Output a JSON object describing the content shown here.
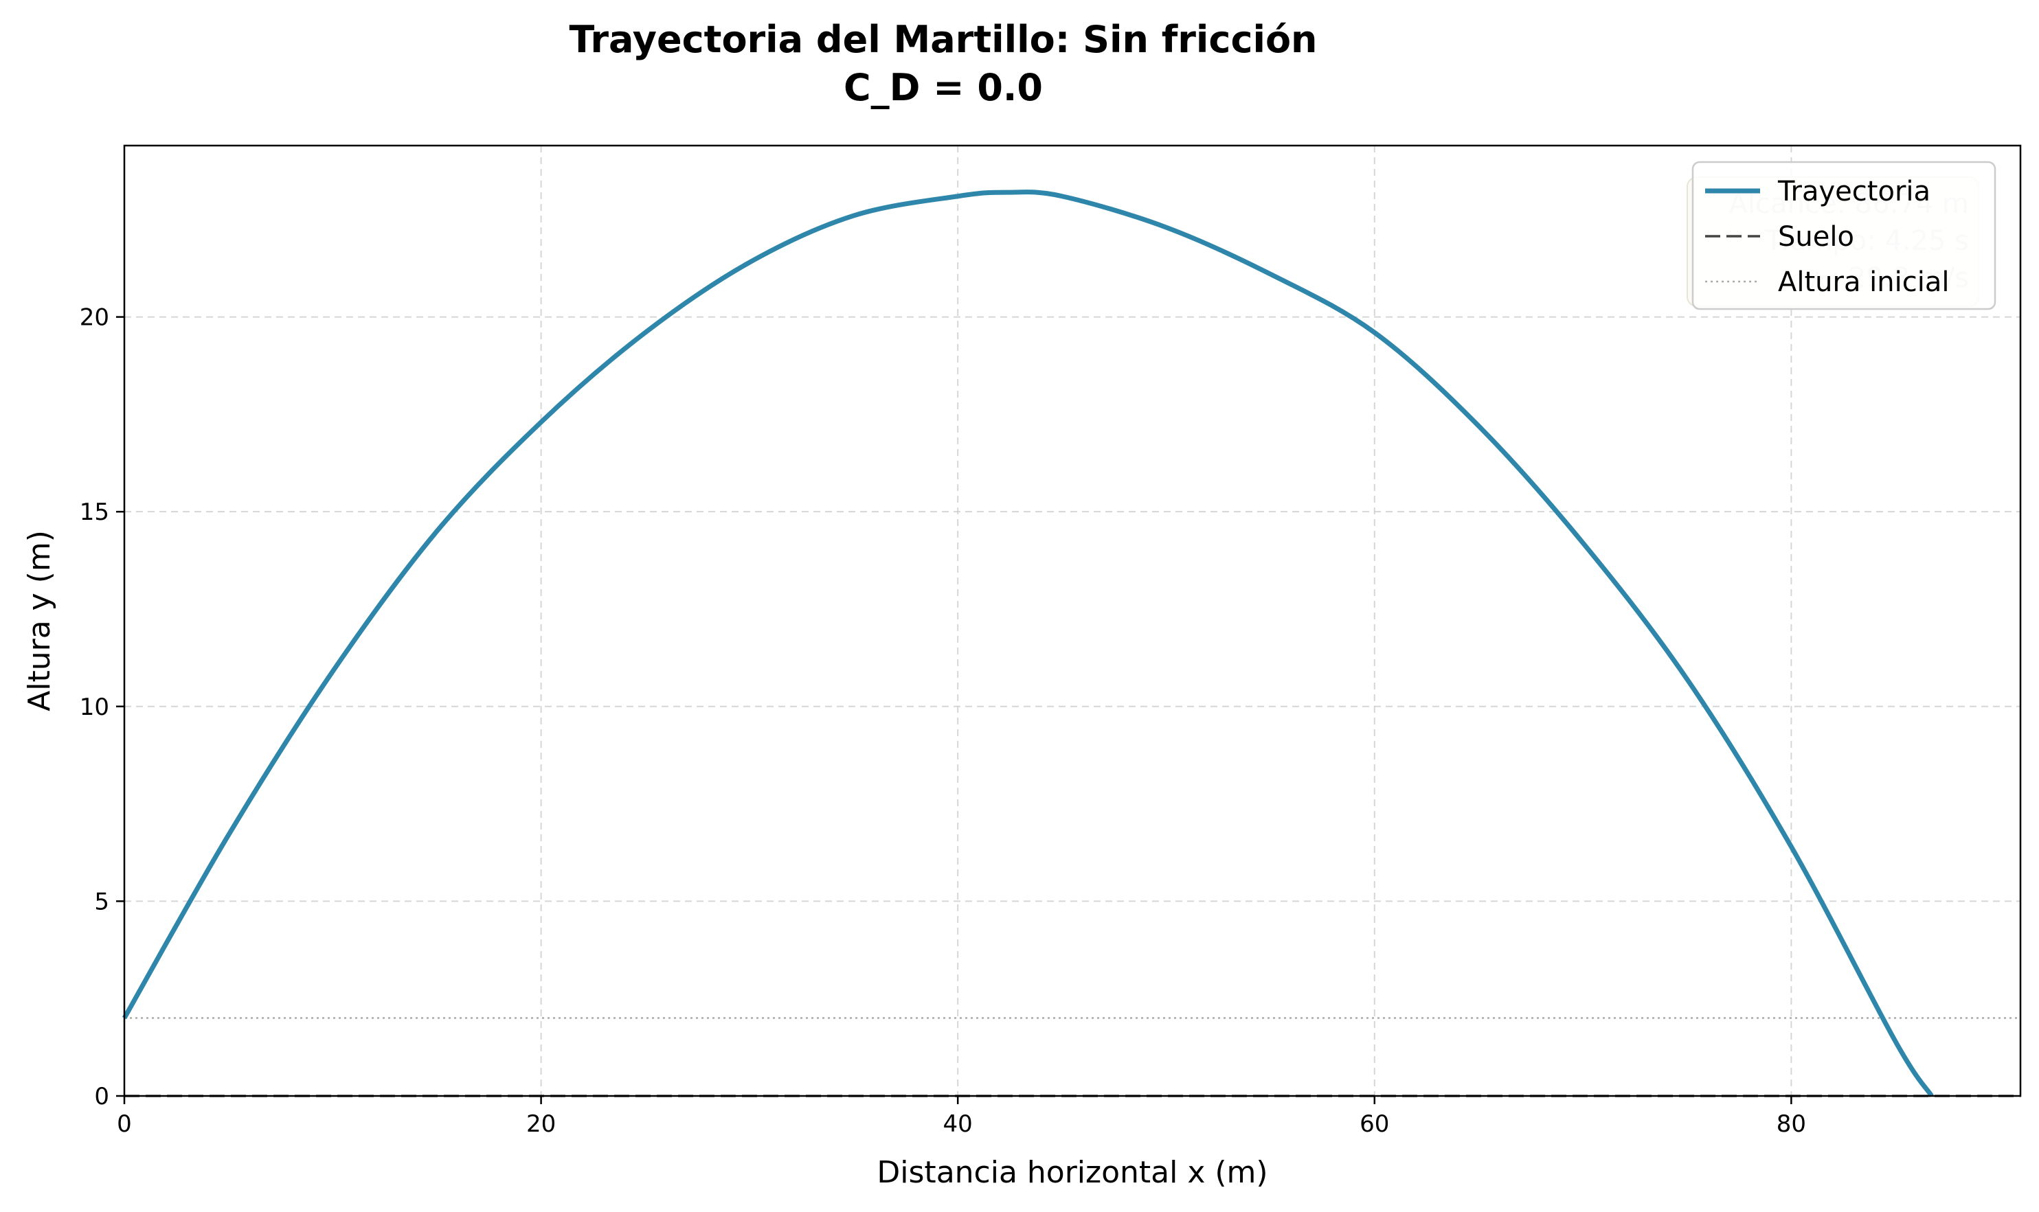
{
  "chart_data": {
    "type": "line",
    "title": "Trayectoria del Martillo: Sin fricción",
    "subtitle": "C_D = 0.0",
    "xlabel": "Distancia horizontal x (m)",
    "ylabel": "Altura y (m)",
    "xlim": [
      0,
      91
    ],
    "ylim": [
      0,
      24.4
    ],
    "xticks": [
      0,
      20,
      40,
      60,
      80
    ],
    "yticks": [
      0,
      5,
      10,
      15,
      20
    ],
    "grid": true,
    "legend_position": "top-right",
    "series": [
      {
        "name": "Trayectoria",
        "color": "#2e86ab",
        "style": "solid",
        "x": [
          0,
          5,
          10,
          15,
          20,
          25,
          30,
          35,
          40,
          42.4,
          45,
          50,
          55,
          60,
          65,
          70,
          75,
          80,
          85,
          86.74
        ],
        "y": [
          2.0,
          6.7,
          10.9,
          14.5,
          17.3,
          19.6,
          21.4,
          22.6,
          23.1,
          23.2,
          23.1,
          22.3,
          21.1,
          19.6,
          17.2,
          14.2,
          10.7,
          6.4,
          1.4,
          0.0
        ]
      },
      {
        "name": "Suelo",
        "color": "#444444",
        "style": "dashed",
        "y_constant": 0
      },
      {
        "name": "Altura inicial",
        "color": "#aaaaaa",
        "style": "dotted",
        "y_constant": 2.0
      }
    ],
    "info_box": [
      "Alcance: 86.74 m",
      "Tiempo: 4.25 s",
      "v₀: 29.8 m/s"
    ]
  }
}
